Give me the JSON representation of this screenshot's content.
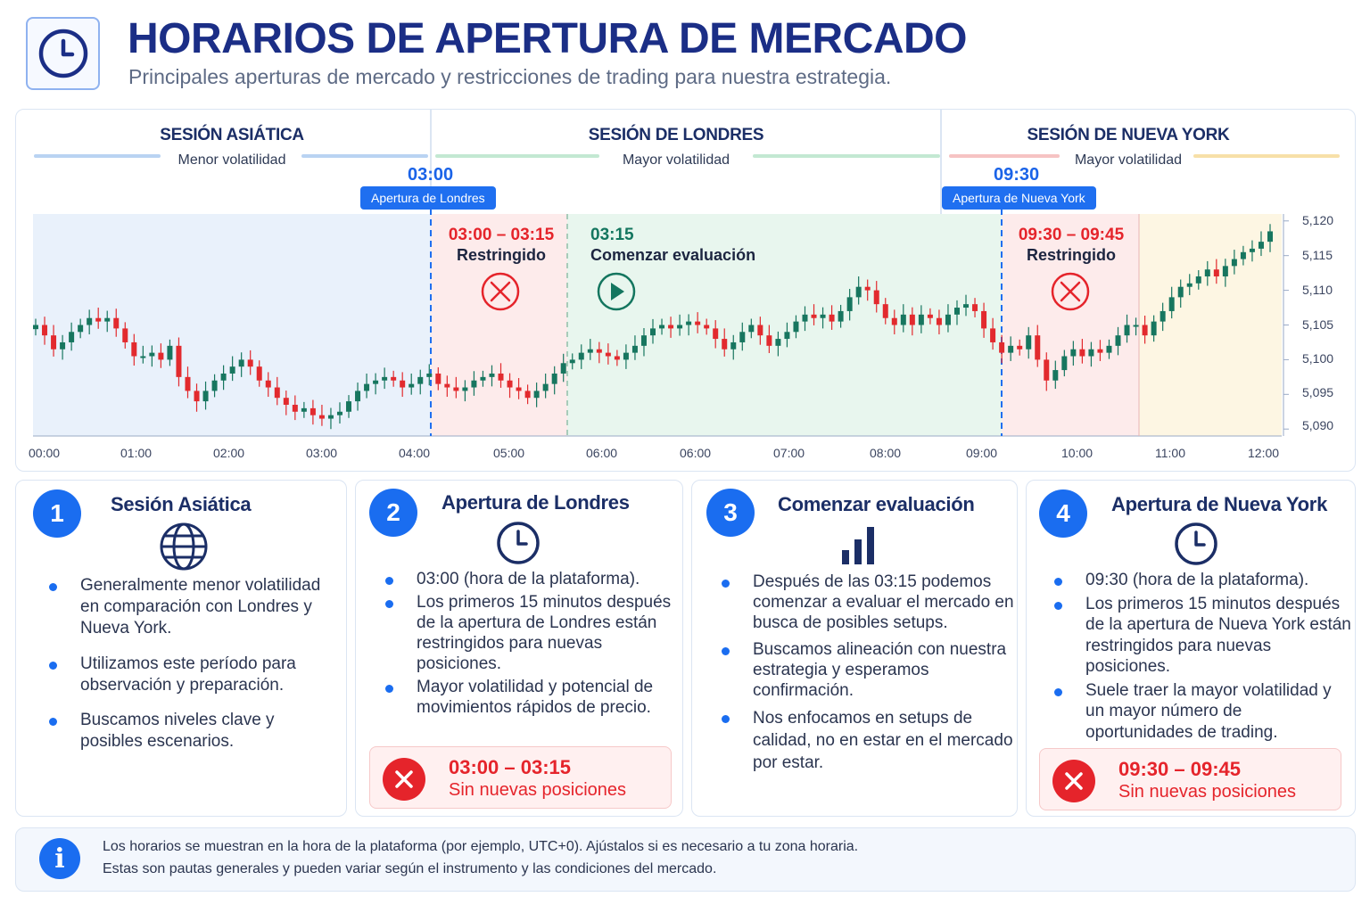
{
  "header": {
    "title": "HORARIOS DE APERTURA DE MERCADO",
    "subtitle": "Principales aperturas de mercado y restricciones de trading para nuestra estrategia.",
    "icon": "clock-icon"
  },
  "sessions": [
    {
      "title": "SESIÓN ASIÁTICA",
      "subtitle": "Menor volatilidad"
    },
    {
      "title": "SESIÓN DE LONDRES",
      "subtitle": "Mayor volatilidad"
    },
    {
      "title": "SESIÓN DE NUEVA YORK",
      "subtitle": "Mayor volatilidad"
    }
  ],
  "openings": [
    {
      "time": "03:00",
      "label": "Apertura de Londres"
    },
    {
      "time": "09:30",
      "label": "Apertura de Nueva York"
    }
  ],
  "zones": {
    "london_restricted": {
      "time": "03:00 – 03:15",
      "label": "Restringido"
    },
    "evaluation": {
      "time": "03:15",
      "label": "Comenzar evaluación"
    },
    "ny_restricted": {
      "time": "09:30 – 09:45",
      "label": "Restringido"
    }
  },
  "axes": {
    "price_ticks": [
      "5,120",
      "5,115",
      "5,110",
      "5,105",
      "5,100",
      "5,095",
      "5,090"
    ],
    "time_ticks": [
      "00:00",
      "01:00",
      "02:00",
      "03:00",
      "04:00",
      "05:00",
      "06:00",
      "06:00",
      "07:00",
      "08:00",
      "09:00",
      "10:00",
      "11:00",
      "12:00"
    ]
  },
  "colors": {
    "asian_bg": "#e9f1fb",
    "london_restricted_bg": "#fdebeb",
    "evaluation_bg": "#e8f6ee",
    "ny_restricted_bg": "#fdebeb",
    "ny_bg": "#fdf6e3",
    "bull": "#17765f",
    "bear": "#e22a2e",
    "accent": "#1a6df0"
  },
  "chart_data": {
    "type": "candlestick",
    "ylim": [
      5089,
      5121
    ],
    "close": [
      5105.0,
      5103.5,
      5101.5,
      5102.5,
      5104.0,
      5105.0,
      5106.0,
      5105.5,
      5106.0,
      5104.5,
      5102.5,
      5100.5,
      5100.5,
      5101.0,
      5100.0,
      5102.0,
      5097.5,
      5095.5,
      5094.0,
      5095.5,
      5097.0,
      5098.0,
      5099.0,
      5100.0,
      5099.0,
      5097.0,
      5096.0,
      5094.5,
      5093.5,
      5092.5,
      5093.0,
      5092.0,
      5091.5,
      5092.0,
      5092.5,
      5094.0,
      5095.5,
      5096.5,
      5097.0,
      5097.5,
      5097.0,
      5096.0,
      5096.5,
      5097.5,
      5098.0,
      5096.5,
      5096.0,
      5095.5,
      5096.0,
      5097.0,
      5097.5,
      5098.0,
      5097.0,
      5096.0,
      5095.5,
      5094.5,
      5095.5,
      5096.5,
      5098.0,
      5099.5,
      5100.0,
      5101.0,
      5101.5,
      5101.0,
      5100.5,
      5100.0,
      5101.0,
      5102.0,
      5103.5,
      5104.5,
      5105.0,
      5104.5,
      5105.0,
      5105.5,
      5105.0,
      5104.5,
      5103.0,
      5101.5,
      5102.5,
      5104.0,
      5105.0,
      5103.5,
      5102.0,
      5103.0,
      5104.0,
      5105.5,
      5106.5,
      5106.0,
      5106.5,
      5105.5,
      5107.0,
      5109.0,
      5110.5,
      5110.0,
      5108.0,
      5106.0,
      5105.0,
      5106.5,
      5105.0,
      5106.5,
      5106.0,
      5105.0,
      5106.5,
      5107.5,
      5108.0,
      5107.0,
      5104.5,
      5102.5,
      5101.0,
      5102.0,
      5101.5,
      5103.5,
      5100.0,
      5097.0,
      5098.5,
      5100.5,
      5101.5,
      5100.5,
      5101.5,
      5101.0,
      5102.0,
      5103.5,
      5105.0,
      5105.0,
      5103.5,
      5105.5,
      5107.0,
      5109.0,
      5110.5,
      5111.0,
      5112.0,
      5113.0,
      5112.0,
      5113.5,
      5114.5,
      5115.5,
      5116.0,
      5117.0,
      5118.5
    ]
  },
  "cards": [
    {
      "number": "1",
      "title": "Sesión Asiática",
      "icon": "globe-icon",
      "bullets": [
        "Generalmente menor volatilidad en comparación con Londres y Nueva York.",
        "Utilizamos este período para observación y preparación.",
        "Buscamos niveles clave y posibles escenarios."
      ]
    },
    {
      "number": "2",
      "title": "Apertura de Londres",
      "icon": "clock-icon",
      "bullets": [
        "03:00 (hora de la plataforma).",
        "Los primeros 15 minutos después de la apertura de Londres están restringidos para nuevas posiciones.",
        "Mayor volatilidad y potencial de movimientos rápidos de precio."
      ],
      "warning": {
        "time": "03:00 – 03:15",
        "text": "Sin nuevas posiciones"
      }
    },
    {
      "number": "3",
      "title": "Comenzar evaluación",
      "icon": "bar-chart-icon",
      "bullets": [
        "Después de las 03:15 podemos comenzar a evaluar el mercado en busca de posibles setups.",
        "Buscamos alineación con nuestra estrategia y esperamos confirmación.",
        "Nos enfocamos en setups de calidad, no en estar en el mercado por estar."
      ]
    },
    {
      "number": "4",
      "title": "Apertura de Nueva York",
      "icon": "clock-icon",
      "bullets": [
        "09:30 (hora de la plataforma).",
        "Los primeros 15 minutos después de la apertura de Nueva York están restringidos para nuevas posiciones.",
        "Suele traer la mayor volatilidad y un mayor número de oportunidades de trading."
      ],
      "warning": {
        "time": "09:30 – 09:45",
        "text": "Sin nuevas posiciones"
      }
    }
  ],
  "info": {
    "line1": "Los horarios se muestran en la hora de la plataforma (por ejemplo, UTC+0). Ajústalos si es necesario a tu zona horaria.",
    "line2": "Estas son pautas generales y pueden variar según el instrumento y las condiciones del mercado."
  }
}
